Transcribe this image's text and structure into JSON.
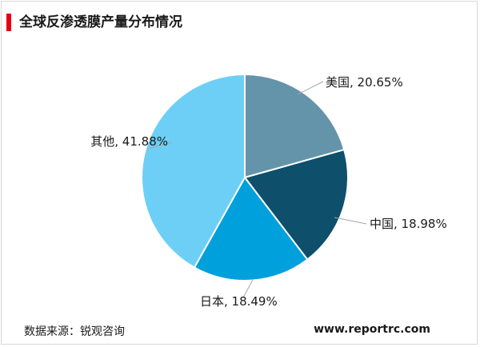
{
  "title": "全球反渗透膜产量分布情况",
  "source": "数据来源：锐观咨询",
  "website": "www.reportrc.com",
  "chart_data": {
    "type": "pie",
    "title": "全球反渗透膜产量分布情况",
    "slices": [
      {
        "label": "美国, 20.65%",
        "name": "美国",
        "value": 20.65,
        "color": "#6494aa"
      },
      {
        "label": "中国, 18.98%",
        "name": "中国",
        "value": 18.98,
        "color": "#0e4f6c"
      },
      {
        "label": "日本, 18.49%",
        "name": "日本",
        "value": 18.49,
        "color": "#00a0dc"
      },
      {
        "label": "其他, 41.88%",
        "name": "其他",
        "value": 41.88,
        "color": "#6dcff6"
      }
    ],
    "start_angle_deg": 0,
    "direction": "clockwise"
  }
}
